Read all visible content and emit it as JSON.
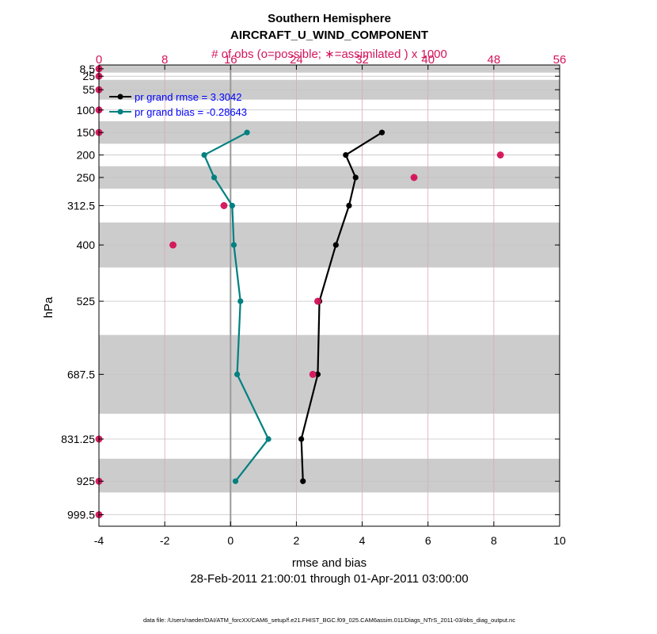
{
  "chart_data": {
    "type": "line",
    "title": "Southern Hemisphere",
    "subtitle": "AIRCRAFT_U_WIND_COMPONENT",
    "top_axis_label": "# of obs (o=possible; ∗=assimilated ) x 1000",
    "xlabel": "rmse and bias",
    "ylabel": "hPa",
    "date_range": "28-Feb-2011 21:00:01 through 01-Apr-2011 03:00:00",
    "footer": "data file: /Users/raeder/DAI/ATM_forcXX/CAM6_setup/f.e21.FHIST_BGC.f09_025.CAM6assim.011/Diags_NTrS_2011-03/obs_diag_output.nc",
    "xlim": [
      -4,
      10
    ],
    "xticks": [
      "-4",
      "-2",
      "0",
      "2",
      "4",
      "6",
      "8",
      "10"
    ],
    "top_xlim": [
      0,
      56
    ],
    "top_xticks": [
      "0",
      "8",
      "16",
      "24",
      "32",
      "40",
      "48",
      "56"
    ],
    "ylim": [
      1025,
      0
    ],
    "ytick_labels": [
      "8.5",
      "25",
      "55",
      "100",
      "150",
      "200",
      "250",
      "312.5",
      "400",
      "525",
      "687.5",
      "831.25",
      "925",
      "999.5"
    ],
    "levels": [
      8.5,
      25,
      55,
      100,
      150,
      200,
      250,
      312.5,
      400,
      525,
      687.5,
      831.25,
      925,
      999.5
    ],
    "grid": true,
    "legend_position": "top-left",
    "shaded_layers": [
      [
        0,
        17
      ],
      [
        33,
        77
      ],
      [
        125,
        175
      ],
      [
        225,
        275
      ],
      [
        350,
        450
      ],
      [
        600,
        775
      ],
      [
        875,
        950
      ]
    ],
    "series": [
      {
        "name": "pr grand rmse = 3.3042",
        "color": "#000000",
        "points": [
          [
            4.6,
            150
          ],
          [
            3.5,
            200
          ],
          [
            3.8,
            250
          ],
          [
            3.6,
            312.5
          ],
          [
            3.2,
            400
          ],
          [
            2.7,
            525
          ],
          [
            2.65,
            687.5
          ],
          [
            2.15,
            831.25
          ],
          [
            2.2,
            925
          ]
        ]
      },
      {
        "name": "pr grand bias = -0.28643",
        "color": "#008080",
        "points": [
          [
            0.5,
            150
          ],
          [
            -0.8,
            200
          ],
          [
            -0.5,
            250
          ],
          [
            0.05,
            312.5
          ],
          [
            0.1,
            400
          ],
          [
            0.3,
            525
          ],
          [
            0.2,
            687.5
          ],
          [
            1.15,
            831.25
          ],
          [
            0.15,
            925
          ]
        ]
      }
    ],
    "obs_count_color": "#d4145a",
    "obs_counts_thousands": [
      {
        "level": 8.5,
        "possible": 0,
        "assimilated": 0
      },
      {
        "level": 25,
        "possible": 0,
        "assimilated": 0
      },
      {
        "level": 55,
        "possible": 0,
        "assimilated": 0
      },
      {
        "level": 100,
        "possible": 0,
        "assimilated": 0
      },
      {
        "level": 150,
        "possible": 0,
        "assimilated": 0
      },
      {
        "level": 200,
        "possible": 48.8,
        "assimilated": 48.8
      },
      {
        "level": 250,
        "possible": 38.3,
        "assimilated": 38.3
      },
      {
        "level": 312.5,
        "possible": 15.2,
        "assimilated": 15.2
      },
      {
        "level": 400,
        "possible": 9,
        "assimilated": 9
      },
      {
        "level": 525,
        "possible": 26.6,
        "assimilated": 26.6
      },
      {
        "level": 687.5,
        "possible": 26,
        "assimilated": 26
      },
      {
        "level": 831.25,
        "possible": 0,
        "assimilated": 0
      },
      {
        "level": 925,
        "possible": 0,
        "assimilated": 0
      },
      {
        "level": 999.5,
        "possible": 0,
        "assimilated": 0
      }
    ]
  }
}
